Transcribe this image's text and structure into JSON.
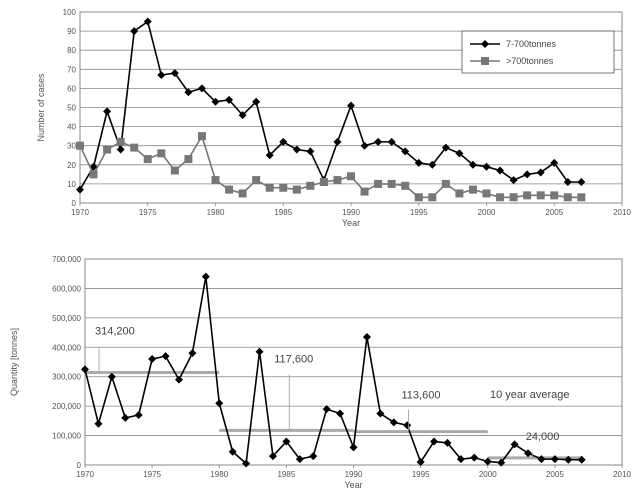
{
  "chart_data": [
    {
      "type": "line",
      "xlabel": "Year",
      "ylabel": "Number of cases",
      "xlim": [
        1970,
        2010
      ],
      "ylim": [
        0,
        100
      ],
      "xticks": [
        "1970",
        "1975",
        "1980",
        "1985",
        "1990",
        "1995",
        "2000",
        "2005",
        "2010"
      ],
      "yticks": [
        "0",
        "10",
        "20",
        "30",
        "40",
        "50",
        "60",
        "70",
        "80",
        "90",
        "100"
      ],
      "grid": "horizontal",
      "legend_position": "top-right",
      "x": [
        1970,
        1971,
        1972,
        1973,
        1974,
        1975,
        1976,
        1977,
        1978,
        1979,
        1980,
        1981,
        1982,
        1983,
        1984,
        1985,
        1986,
        1987,
        1988,
        1989,
        1990,
        1991,
        1992,
        1993,
        1994,
        1995,
        1996,
        1997,
        1998,
        1999,
        2000,
        2001,
        2002,
        2003,
        2004,
        2005,
        2006,
        2007
      ],
      "series": [
        {
          "name": "7-700tonnes",
          "marker": "diamond",
          "color": "#000000",
          "values": [
            7,
            19,
            48,
            28,
            90,
            95,
            67,
            68,
            58,
            60,
            53,
            54,
            46,
            53,
            25,
            32,
            28,
            27,
            12,
            32,
            51,
            30,
            32,
            32,
            27,
            21,
            20,
            29,
            26,
            20,
            19,
            17,
            12,
            15,
            16,
            21,
            11,
            11
          ]
        },
        {
          "name": ">700tonnes",
          "marker": "square",
          "color": "#777777",
          "values": [
            30,
            15,
            28,
            32,
            29,
            23,
            26,
            17,
            23,
            35,
            12,
            7,
            5,
            12,
            8,
            8,
            7,
            9,
            11,
            12,
            14,
            6,
            10,
            10,
            9,
            3,
            3,
            10,
            5,
            7,
            5,
            3,
            3,
            4,
            4,
            4,
            3,
            3
          ]
        }
      ]
    },
    {
      "type": "line",
      "xlabel": "Year",
      "ylabel": "Quantity [tonnes]",
      "xlim": [
        1970,
        2010
      ],
      "ylim": [
        0,
        700000
      ],
      "xticks": [
        "1970",
        "1975",
        "1980",
        "1985",
        "1990",
        "1995",
        "2000",
        "2005",
        "2010"
      ],
      "yticks": [
        "0",
        "100,000",
        "200,000",
        "300,000",
        "400,000",
        "500,000",
        "600,000",
        "700,000"
      ],
      "grid": "horizontal",
      "x": [
        1970,
        1971,
        1972,
        1973,
        1974,
        1975,
        1976,
        1977,
        1978,
        1979,
        1980,
        1981,
        1982,
        1983,
        1984,
        1985,
        1986,
        1987,
        1988,
        1989,
        1990,
        1991,
        1992,
        1993,
        1994,
        1995,
        1996,
        1997,
        1998,
        1999,
        2000,
        2001,
        2002,
        2003,
        2004,
        2005,
        2006,
        2007
      ],
      "series": [
        {
          "name": "Quantity",
          "marker": "diamond",
          "color": "#000000",
          "values": [
            325000,
            140000,
            300000,
            160000,
            170000,
            360000,
            370000,
            290000,
            380000,
            640000,
            210000,
            45000,
            5000,
            385000,
            30000,
            80000,
            20000,
            30000,
            190000,
            175000,
            60000,
            435000,
            175000,
            145000,
            135000,
            10000,
            80000,
            75000,
            20000,
            25000,
            12000,
            8000,
            70000,
            40000,
            20000,
            20000,
            18000,
            18000
          ]
        }
      ],
      "averages": [
        {
          "label": "314,200",
          "start": 1970,
          "end": 1980,
          "value": 314200
        },
        {
          "label": "117,600",
          "start": 1980,
          "end": 1990,
          "value": 117600
        },
        {
          "label": "113,600",
          "start": 1990,
          "end": 2000,
          "value": 113600
        },
        {
          "label": "24,000",
          "start": 2000,
          "end": 2007,
          "value": 24000
        }
      ],
      "average_note": "10 year average"
    }
  ]
}
